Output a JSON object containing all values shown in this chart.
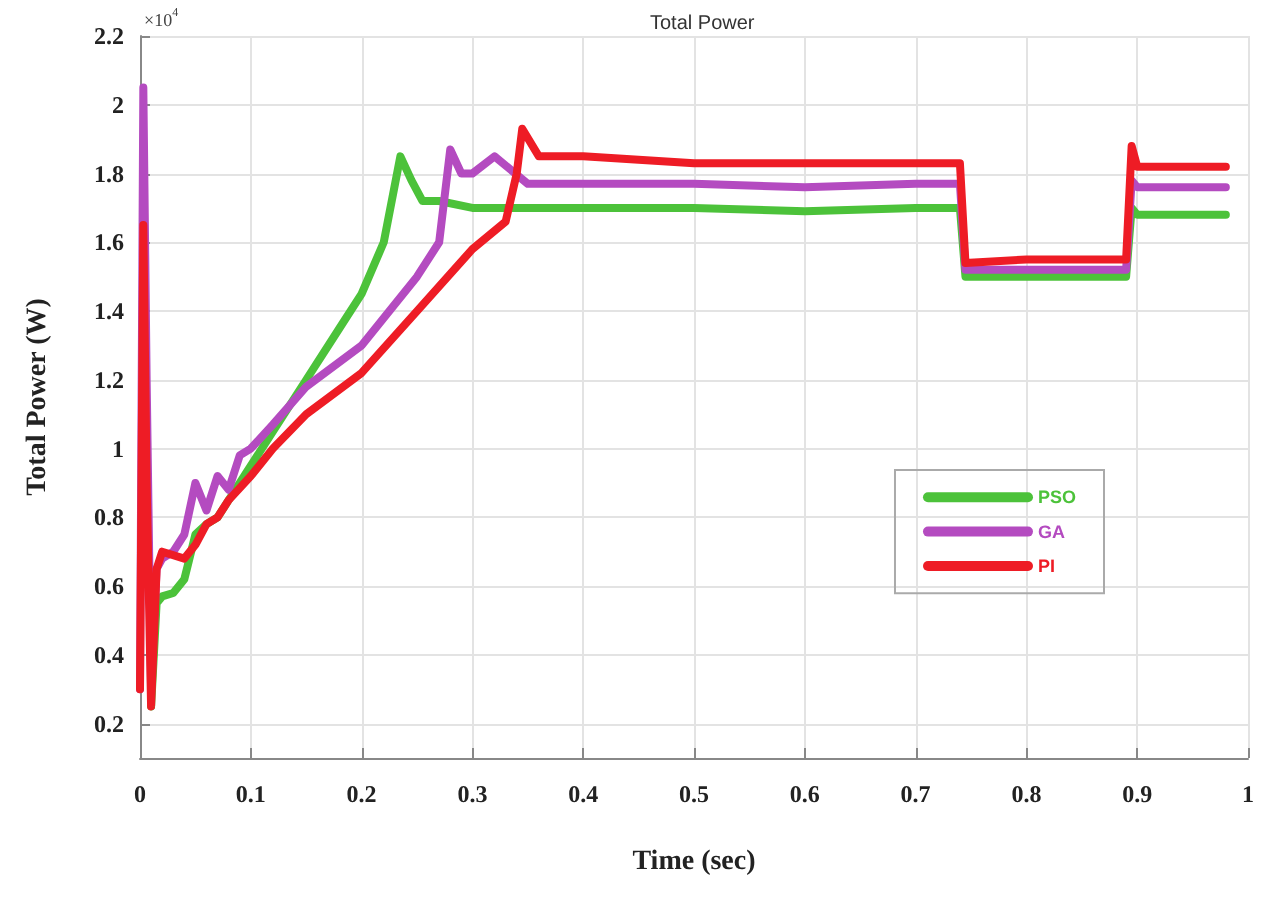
{
  "chart_data": {
    "type": "line",
    "title": "Total Power",
    "xlabel": "Time (sec)",
    "ylabel": "Total Power (W)",
    "annotations": [
      "×10$^{4}$"
    ],
    "xlim": [
      0,
      1
    ],
    "xticks": [
      0,
      0.1,
      0.2,
      0.3,
      0.4,
      0.5,
      0.6,
      0.7,
      0.8,
      0.9,
      1
    ],
    "ylim": [
      0.1,
      2.2
    ],
    "yticks": [
      0.2,
      0.4,
      0.6,
      0.8,
      1,
      1.2,
      1.4,
      1.6,
      1.8,
      2,
      2.2
    ],
    "grid": true,
    "legend": "right",
    "marker": "none",
    "line_style": "solid",
    "series": [
      {
        "name": "PSO",
        "color": "#4cc23a",
        "x": [
          0.01,
          0.015,
          0.02,
          0.03,
          0.04,
          0.05,
          0.06,
          0.07,
          0.08,
          0.1,
          0.12,
          0.15,
          0.18,
          0.2,
          0.22,
          0.235,
          0.245,
          0.255,
          0.27,
          0.3,
          0.4,
          0.5,
          0.6,
          0.7,
          0.74,
          0.745,
          0.8,
          0.89,
          0.895,
          0.9,
          0.98
        ],
        "values": [
          0.25,
          0.55,
          0.57,
          0.58,
          0.62,
          0.75,
          0.78,
          0.8,
          0.85,
          0.95,
          1.05,
          1.2,
          1.35,
          1.45,
          1.6,
          1.85,
          1.78,
          1.72,
          1.72,
          1.7,
          1.7,
          1.7,
          1.69,
          1.7,
          1.7,
          1.5,
          1.5,
          1.5,
          1.7,
          1.68,
          1.68
        ]
      },
      {
        "name": "GA",
        "color": "#b44bc0",
        "x": [
          0,
          0.003,
          0.006,
          0.01,
          0.015,
          0.02,
          0.03,
          0.04,
          0.05,
          0.06,
          0.07,
          0.08,
          0.09,
          0.1,
          0.12,
          0.15,
          0.2,
          0.25,
          0.27,
          0.28,
          0.29,
          0.3,
          0.32,
          0.35,
          0.4,
          0.5,
          0.6,
          0.7,
          0.74,
          0.745,
          0.8,
          0.89,
          0.895,
          0.9,
          0.98
        ],
        "values": [
          0.3,
          2.05,
          1.2,
          0.3,
          0.65,
          0.68,
          0.7,
          0.75,
          0.9,
          0.82,
          0.92,
          0.88,
          0.98,
          1.0,
          1.07,
          1.18,
          1.3,
          1.5,
          1.6,
          1.87,
          1.8,
          1.8,
          1.85,
          1.77,
          1.77,
          1.77,
          1.76,
          1.77,
          1.77,
          1.52,
          1.52,
          1.52,
          1.78,
          1.76,
          1.76
        ]
      },
      {
        "name": "PI",
        "color": "#ee1c25",
        "x": [
          0,
          0.003,
          0.006,
          0.01,
          0.015,
          0.02,
          0.04,
          0.05,
          0.06,
          0.07,
          0.08,
          0.1,
          0.12,
          0.15,
          0.2,
          0.25,
          0.3,
          0.33,
          0.34,
          0.345,
          0.36,
          0.4,
          0.5,
          0.6,
          0.7,
          0.74,
          0.745,
          0.8,
          0.89,
          0.895,
          0.9,
          0.98
        ],
        "values": [
          0.3,
          1.65,
          0.9,
          0.25,
          0.65,
          0.7,
          0.68,
          0.72,
          0.78,
          0.8,
          0.85,
          0.92,
          1.0,
          1.1,
          1.22,
          1.4,
          1.58,
          1.66,
          1.8,
          1.93,
          1.85,
          1.85,
          1.83,
          1.83,
          1.83,
          1.83,
          1.54,
          1.55,
          1.55,
          1.88,
          1.82,
          1.82
        ]
      }
    ]
  }
}
